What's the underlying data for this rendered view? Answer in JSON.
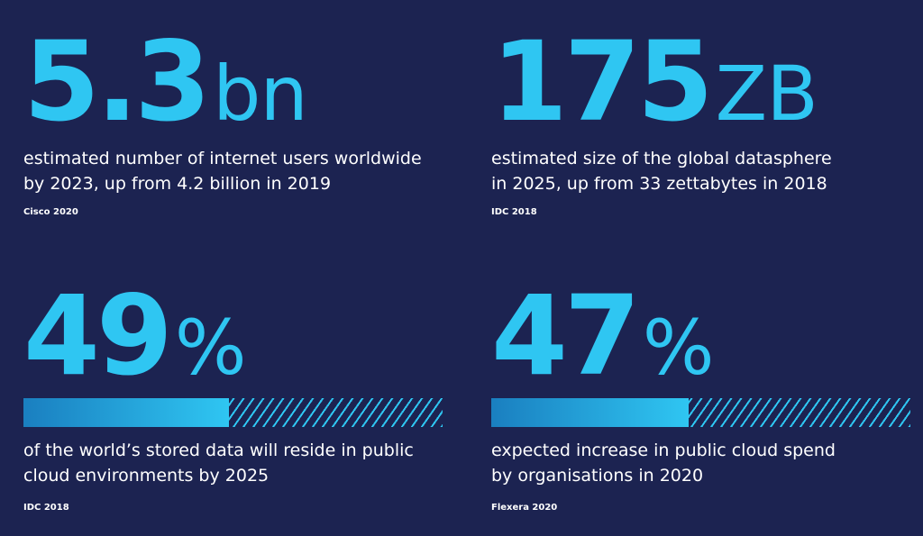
{
  "stats": [
    {
      "number": "5.3",
      "unit": "bn",
      "line1": "estimated number of internet users worldwide",
      "line2": "by 2023, up from 4.2 billion in 2019",
      "source": "Cisco 2020"
    },
    {
      "number": "175",
      "unit": "ZB",
      "line1": "estimated size of the global datasphere",
      "line2": "in 2025, up from 33 zettabytes in 2018",
      "source": "IDC 2018"
    },
    {
      "number": "49",
      "unit": "%",
      "progress": 49,
      "line1": "of the world’s stored data will reside in public",
      "line2": "cloud environments by 2025",
      "source": "IDC 2018"
    },
    {
      "number": "47",
      "unit": "%",
      "progress": 47,
      "line1": "expected increase in public cloud spend",
      "line2": "by organisations in 2020",
      "source": "Flexera 2020"
    }
  ],
  "colors": {
    "background": "#1c2351",
    "accent": "#2fc6f2",
    "text": "#ffffff"
  }
}
